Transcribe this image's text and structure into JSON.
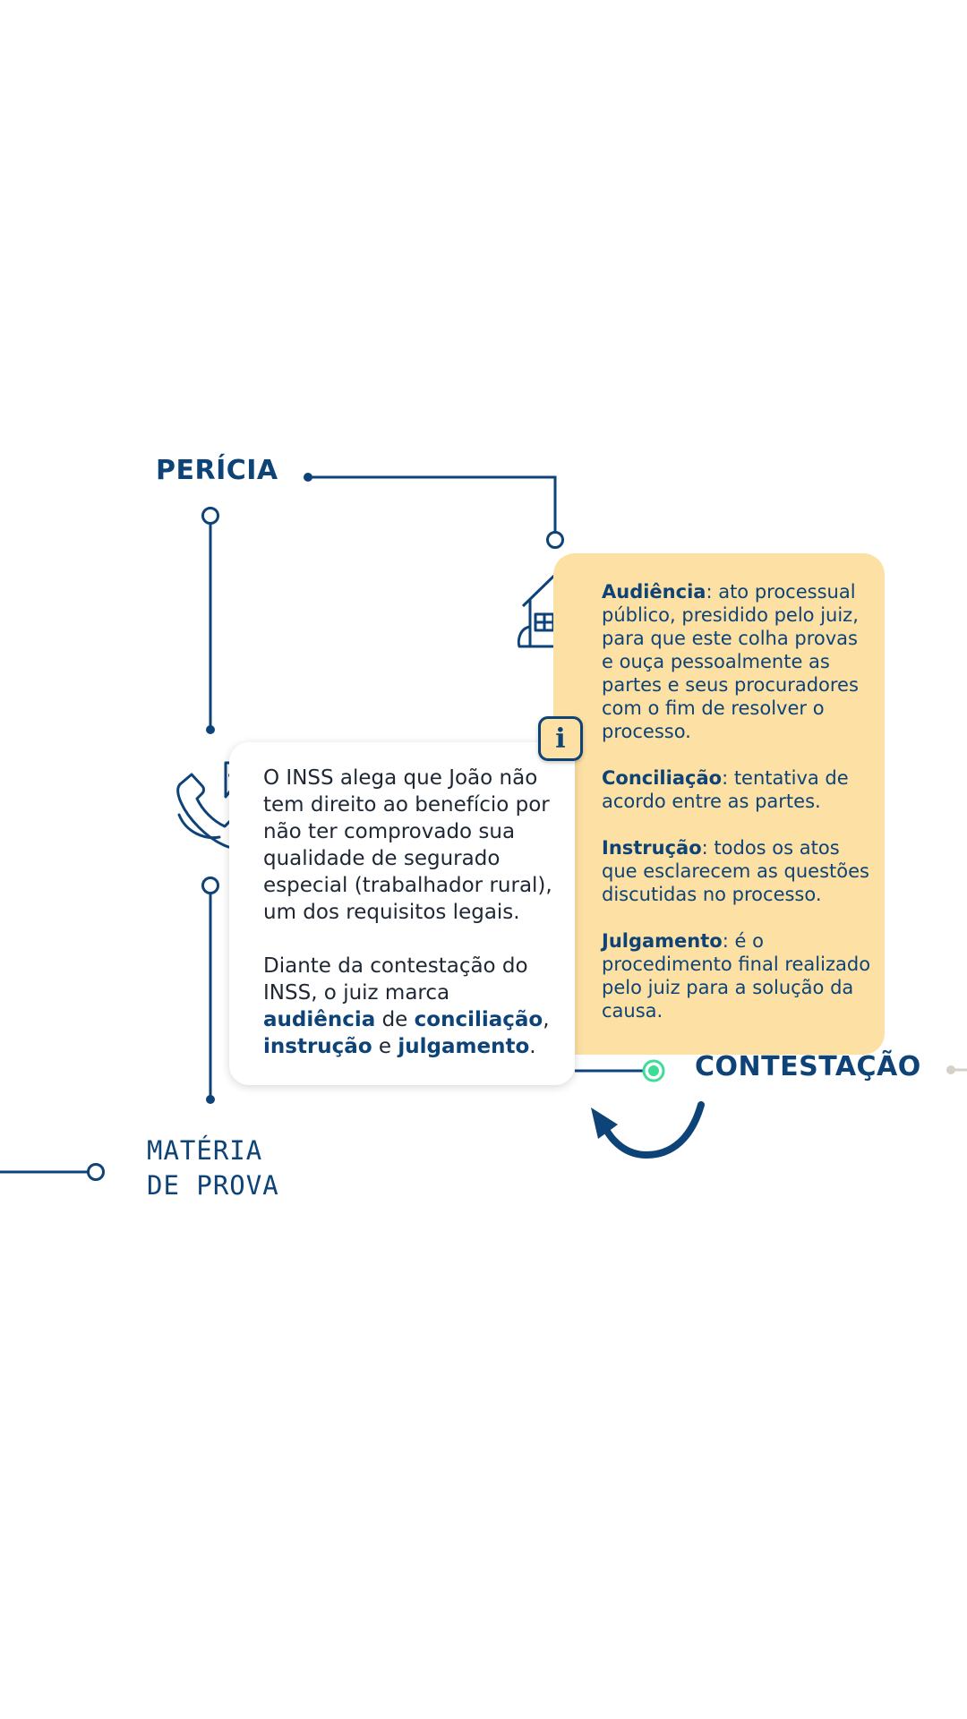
{
  "diagram": {
    "labels": {
      "pericia": "PERÍCIA",
      "contestacao": "CONTESTAÇÃO",
      "materia_line1": "MATÉRIA",
      "materia_line2": "DE PROVA"
    },
    "icons": {
      "house": "house-icon",
      "phone": "phone-chat-icon",
      "info": "info-icon",
      "info_glyph": "i",
      "arrow": "curved-arrow-icon"
    },
    "colors": {
      "primary": "#0d4377",
      "info_card": "#fde0a3",
      "active_node": "#3ddc97",
      "inactive_node": "#d6d0c6"
    }
  },
  "main_card": {
    "p1": "O INSS alega que João não tem direito ao benefício por não ter comprovado sua qualidade de segurado especial (trabalhador rural), um dos requisitos legais.",
    "p2_intro": "Diante da contestação do INSS, o juiz marca ",
    "p2_audiencia": "audiência",
    "p2_de": " de ",
    "p2_conciliacao": "conciliação",
    "p2_comma": ",",
    "p2_instrucao": "instrução",
    "p2_e": " e ",
    "p2_julgamento": "julgamento",
    "p2_end": "."
  },
  "info_card": {
    "items": [
      {
        "term": "Audiência",
        "definition": ": ato processual público, presidido pelo juiz, para que este colha provas e ouça pessoalmente as partes e seus procuradores com o fim de resolver o processo."
      },
      {
        "term": "Conciliação",
        "definition": ": tentativa de acordo entre as partes."
      },
      {
        "term": "Instrução",
        "definition": ": todos os atos que esclarecem as questões discutidas no processo."
      },
      {
        "term": "Julgamento",
        "definition": ": é o procedimento final realizado pelo juiz para a solução da causa."
      }
    ]
  }
}
